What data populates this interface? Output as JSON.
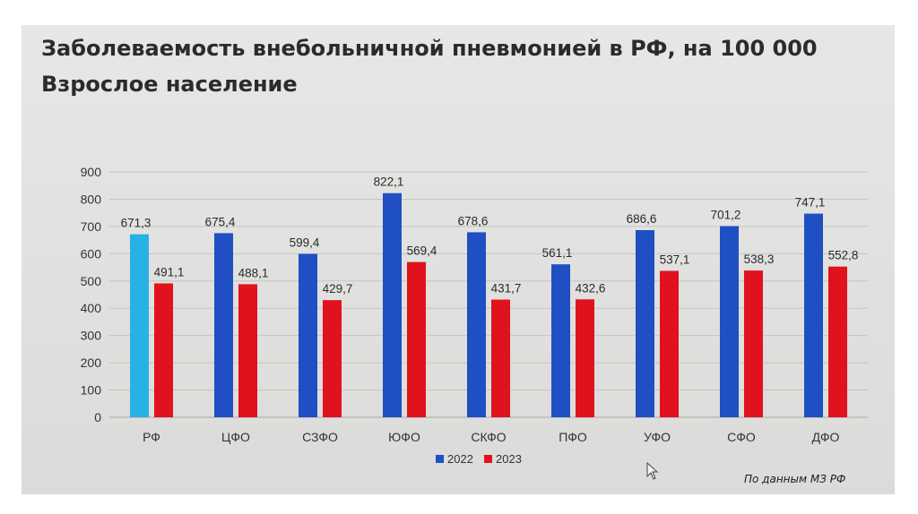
{
  "title": {
    "line1": "Заболеваемость внебольничной пневмонией в РФ, на 100 000",
    "line2": "Взрослое население"
  },
  "source_note": "По данным МЗ РФ",
  "colors": {
    "series_2022": "#1f4fc2",
    "series_2023": "#e0121e",
    "highlight_rf_2022": "#27b2e6",
    "grid": "#c4c4c4"
  },
  "chart_data": {
    "type": "bar",
    "title": "Заболеваемость внебольничной пневмонией в РФ, на 100 000",
    "subtitle": "Взрослое население",
    "categories": [
      "РФ",
      "ЦФО",
      "СЗФО",
      "ЮФО",
      "СКФО",
      "ПФО",
      "УФО",
      "СФО",
      "ДФО"
    ],
    "series": [
      {
        "name": "2022",
        "values": [
          671.3,
          675.4,
          599.4,
          822.1,
          678.6,
          561.1,
          686.6,
          701.2,
          747.1
        ],
        "labels": [
          "671,3",
          "675,4",
          "599,4",
          "822,1",
          "678,6",
          "561,1",
          "686,6",
          "701,2",
          "747,1"
        ]
      },
      {
        "name": "2023",
        "values": [
          491.1,
          488.1,
          429.7,
          569.4,
          431.7,
          432.6,
          537.1,
          538.3,
          552.8
        ],
        "labels": [
          "491,1",
          "488,1",
          "429,7",
          "569,4",
          "431,7",
          "432,6",
          "537,1",
          "538,3",
          "552,8"
        ]
      }
    ],
    "yticks": [
      "0",
      "100",
      "200",
      "300",
      "400",
      "500",
      "600",
      "700",
      "800",
      "900"
    ],
    "ylim": [
      0,
      900
    ],
    "grid": true,
    "legend": "bottom-center"
  }
}
